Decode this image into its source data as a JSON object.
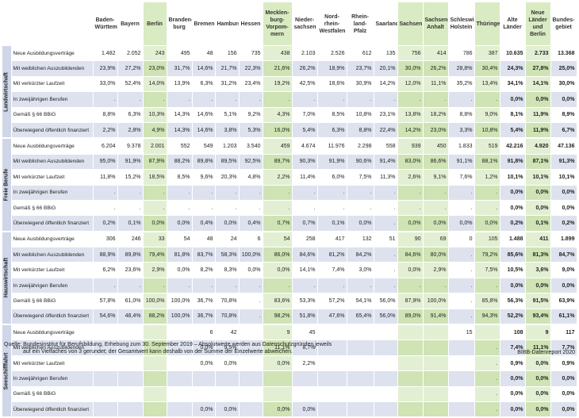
{
  "columns": [
    "Baden-Württemberg",
    "Bayern",
    "Berlin",
    "Branden-burg",
    "Bremen",
    "Hamburg",
    "Hessen",
    "Mecklen-burg-Vorpom-mern",
    "Nieder-sachsen",
    "Nord-rhein-Westfalen",
    "Rhein-land-Pfalz",
    "Saarland",
    "Sachsen",
    "Sachsen-Anhalt",
    "Schleswig-Holstein",
    "Thüringen",
    "Alte Länder",
    "Neue Länder und Berlin",
    "Bundes-gebiet"
  ],
  "column_headers": [
    [
      "Baden-",
      "Württemberg"
    ],
    [
      "Bayern"
    ],
    [
      "Berlin"
    ],
    [
      "Branden-",
      "burg"
    ],
    [
      "Bremen"
    ],
    [
      "Hamburg"
    ],
    [
      "Hessen"
    ],
    [
      "Mecklen-",
      "burg-",
      "Vorpom-",
      "mern"
    ],
    [
      "Nieder-",
      "sachsen"
    ],
    [
      "Nord-",
      "rhein-",
      "Westfalen"
    ],
    [
      "Rhein-",
      "land-Pfalz"
    ],
    [
      "Saarland"
    ],
    [
      "Sachsen"
    ],
    [
      "Sachsen-",
      "Anhalt"
    ],
    [
      "Schleswig-",
      "Holstein"
    ],
    [
      "Thüringen"
    ],
    [
      "Alte",
      "Länder"
    ],
    [
      "Neue",
      "Länder",
      "und Berlin"
    ],
    [
      "Bundes-",
      "gebiet"
    ]
  ],
  "groups": [
    {
      "name": "Landwirtschaft",
      "rows": [
        {
          "label": "Neue Ausbildungsverträge",
          "values": [
            "1.482",
            "2.052",
            "243",
            "495",
            "48",
            "156",
            "735",
            "438",
            "2.103",
            "2.526",
            "612",
            "135",
            "756",
            "414",
            "786",
            "387",
            "10.635",
            "2.733",
            "13.368"
          ]
        },
        {
          "label": "Mit weiblichen Auszubildenden",
          "values": [
            "23,9%",
            "27,2%",
            "23,0%",
            "31,7%",
            "14,6%",
            "21,7%",
            "22,3%",
            "21,6%",
            "26,2%",
            "18,9%",
            "23,7%",
            "20,1%",
            "30,0%",
            "26,2%",
            "28,8%",
            "30,4%",
            "24,3%",
            "27,8%",
            "25,0%"
          ]
        },
        {
          "label": "Mit verkürzter Laufzeit",
          "values": [
            "33,0%",
            "52,4%",
            "14,0%",
            "13,9%",
            "6,3%",
            "31,2%",
            "23,4%",
            "19,2%",
            "42,5%",
            "18,6%",
            "30,9%",
            "14,2%",
            "12,0%",
            "11,1%",
            "35,2%",
            "13,4%",
            "34,1%",
            "14,1%",
            "30,0%"
          ]
        },
        {
          "label": "In zweijährigen Berufen",
          "values": [
            ".",
            ".",
            ".",
            ".",
            ".",
            ".",
            ".",
            ".",
            ".",
            ".",
            ".",
            ".",
            ".",
            ".",
            ".",
            ".",
            "0,0%",
            "0,0%",
            "0,0%"
          ]
        },
        {
          "label": "Gemäß § 66 BBiG",
          "values": [
            "8,8%",
            "6,3%",
            "10,3%",
            "14,3%",
            "14,6%",
            "5,1%",
            "9,2%",
            "4,3%",
            "7,0%",
            "8,5%",
            "10,8%",
            "23,1%",
            "13,8%",
            "18,2%",
            "8,8%",
            "9,0%",
            "8,1%",
            "11,9%",
            "8,9%"
          ]
        },
        {
          "label": "Überwiegend öffentlich finanziert",
          "values": [
            "2,2%",
            "2,8%",
            "4,9%",
            "14,3%",
            "14,6%",
            "3,8%",
            "5,3%",
            "16,0%",
            "5,4%",
            "6,3%",
            "8,8%",
            "22,4%",
            "14,2%",
            "23,0%",
            "3,3%",
            "10,8%",
            "5,4%",
            "11,9%",
            "6,7%"
          ]
        }
      ]
    },
    {
      "name": "Freie Berufe",
      "rows": [
        {
          "label": "Neue Ausbildungsverträge",
          "values": [
            "6.204",
            "9.378",
            "2.001",
            "552",
            "549",
            "1.203",
            "3.540",
            "459",
            "4.674",
            "11.976",
            "2.298",
            "558",
            "939",
            "450",
            "1.833",
            "519",
            "42.216",
            "4.920",
            "47.136"
          ]
        },
        {
          "label": "Mit weiblichen Auszubildenden",
          "values": [
            "95,0%",
            "91,9%",
            "87,9%",
            "88,2%",
            "89,8%",
            "89,5%",
            "92,5%",
            "89,7%",
            "90,3%",
            "91,9%",
            "90,6%",
            "91,4%",
            "83,0%",
            "86,6%",
            "91,1%",
            "88,1%",
            "91,8%",
            "87,1%",
            "91,3%"
          ]
        },
        {
          "label": "Mit verkürzter Laufzeit",
          "values": [
            "11,8%",
            "15,2%",
            "18,5%",
            "8,5%",
            "9,6%",
            "20,3%",
            "4,8%",
            "2,2%",
            "11,4%",
            "6,0%",
            "7,5%",
            "11,3%",
            "2,6%",
            "9,1%",
            "7,6%",
            "1,2%",
            "10,1%",
            "10,1%",
            "10,1%"
          ]
        },
        {
          "label": "In zweijährigen Berufen",
          "values": [
            ".",
            ".",
            ".",
            ".",
            ".",
            ".",
            ".",
            ".",
            ".",
            ".",
            ".",
            ".",
            ".",
            ".",
            ".",
            ".",
            "0,0%",
            "0,0%",
            "0,0%"
          ]
        },
        {
          "label": "Gemäß § 66 BBiG",
          "values": [
            ".",
            ".",
            ".",
            ".",
            ".",
            ".",
            ".",
            ".",
            ".",
            ".",
            ".",
            ".",
            ".",
            ".",
            ".",
            ".",
            "0,0%",
            "0,0%",
            "0,0%"
          ]
        },
        {
          "label": "Überwiegend öffentlich finanziert",
          "values": [
            "0,2%",
            "0,1%",
            "0,0%",
            "0,0%",
            "0,4%",
            "0,0%",
            "0,4%",
            "0,7%",
            "0,7%",
            "0,1%",
            "0,0%",
            ".",
            "0,0%",
            "0,0%",
            "0,0%",
            "0,0%",
            "0,2%",
            "0,1%",
            "0,2%"
          ]
        }
      ]
    },
    {
      "name": "Hauswirtschaft",
      "rows": [
        {
          "label": "Neue Ausbildungsverträge",
          "values": [
            "306",
            "246",
            "33",
            "54",
            "48",
            "24",
            "6",
            "54",
            "258",
            "417",
            "132",
            "51",
            "90",
            "69",
            "0",
            "105",
            "1.488",
            "411",
            "1.899"
          ]
        },
        {
          "label": "Mit weiblichen Auszubildenden",
          "values": [
            "88,9%",
            "89,8%",
            "79,4%",
            "81,8%",
            "83,7%",
            "58,3%",
            "100,0%",
            "86,0%",
            "84,6%",
            "81,2%",
            "84,2%",
            ".",
            "84,6%",
            "80,0%",
            ".",
            "79,2%",
            "85,6%",
            "81,3%",
            "84,7%"
          ]
        },
        {
          "label": "Mit verkürzter Laufzeit",
          "values": [
            "6,2%",
            "23,6%",
            "2,9%",
            "0,0%",
            "8,2%",
            "8,3%",
            "0,0%",
            "0,0%",
            "14,1%",
            "7,4%",
            "3,0%",
            ".",
            "0,0%",
            "2,9%",
            ".",
            "7,5%",
            "10,5%",
            "3,6%",
            "9,0%"
          ]
        },
        {
          "label": "In zweijährigen Berufen",
          "values": [
            ".",
            ".",
            ".",
            ".",
            ".",
            ".",
            ".",
            ".",
            ".",
            ".",
            ".",
            ".",
            ".",
            ".",
            ".",
            ".",
            "0,0%",
            "0,0%",
            "0,0%"
          ]
        },
        {
          "label": "Gemäß § 66 BBiG",
          "values": [
            "57,8%",
            "61,0%",
            "100,0%",
            "100,0%",
            "36,7%",
            "70,8%",
            ".",
            "83,6%",
            "53,3%",
            "57,2%",
            "54,1%",
            "56,0%",
            "87,9%",
            "100,0%",
            ".",
            "85,8%",
            "56,3%",
            "91,5%",
            "63,9%"
          ]
        },
        {
          "label": "Überwiegend öffentlich finanziert",
          "values": [
            "54,6%",
            "48,4%",
            "88,2%",
            "100,0%",
            "36,7%",
            "70,8%",
            ".",
            "98,2%",
            "51,8%",
            "47,6%",
            "65,4%",
            "56,0%",
            "89,0%",
            "91,4%",
            ".",
            "94,3%",
            "52,2%",
            "93,4%",
            "61,1%"
          ]
        }
      ]
    },
    {
      "name": "Seeschifffahrt",
      "rows": [
        {
          "label": "Neue Ausbildungsverträge",
          "values": [
            "",
            "",
            "",
            "",
            "6",
            "42",
            "",
            "9",
            "45",
            "",
            "",
            "",
            "",
            "",
            "15",
            "",
            "108",
            "9",
            "117"
          ]
        },
        {
          "label": "Mit weiblichen Auszubildenden",
          "values": [
            "",
            "",
            "",
            "",
            "0,0%",
            "9,5%",
            "",
            "11,1%",
            "8,7%",
            "",
            "",
            "",
            "",
            "",
            "",
            ".",
            "7,4%",
            "11,1%",
            "7,7%"
          ]
        },
        {
          "label": "Mit verkürzter Laufzeit",
          "values": [
            "",
            "",
            "",
            "",
            "0,0%",
            "0,0%",
            "",
            "0,0%",
            "2,2%",
            "",
            "",
            "",
            "",
            "",
            "",
            ".",
            "0,9%",
            "0,0%",
            "0,9%"
          ]
        },
        {
          "label": "In zweijährigen Berufen",
          "values": [
            "",
            "",
            "",
            "",
            "",
            "",
            "",
            "",
            "",
            "",
            "",
            "",
            "",
            "",
            "",
            ".",
            "0,0%",
            "0,0%",
            "0,0%"
          ]
        },
        {
          "label": "Gemäß § 66 BBiG",
          "values": [
            "",
            "",
            "",
            "",
            "",
            "",
            "",
            "",
            "",
            "",
            "",
            "",
            "",
            "",
            "",
            ".",
            "0,0%",
            "0,0%",
            "0,0%"
          ]
        },
        {
          "label": "Überwiegend öffentlich finanziert",
          "values": [
            "",
            "",
            "",
            "",
            "0,0%",
            "0,0%",
            "",
            "0,0%",
            "0,0%",
            "",
            "",
            "",
            "",
            "",
            "",
            ".",
            "0,0%",
            "0,0%",
            "0,0%"
          ]
        }
      ]
    }
  ],
  "green_columns": [
    2,
    7,
    12,
    13,
    15,
    17
  ],
  "bold_columns": [
    16,
    17,
    18
  ],
  "colors": {
    "blue_row": "#dde2ee",
    "green_col": "#d9ebc2",
    "region": "#cfd6e8"
  },
  "footer": {
    "source_line1": "Quelle: Bundesinstitut für Berufsbildung, Erhebung zum 30. September 2019 – Absolutwerte werden aus Datenschutzgründen jeweils",
    "source_line2": "auf ein Vielfaches von 3 gerundet; der Gesamtwert kann deshalb von der Summe der Einzelwerte abweichen.",
    "credit": "BIBB-Datenreport 2020"
  }
}
